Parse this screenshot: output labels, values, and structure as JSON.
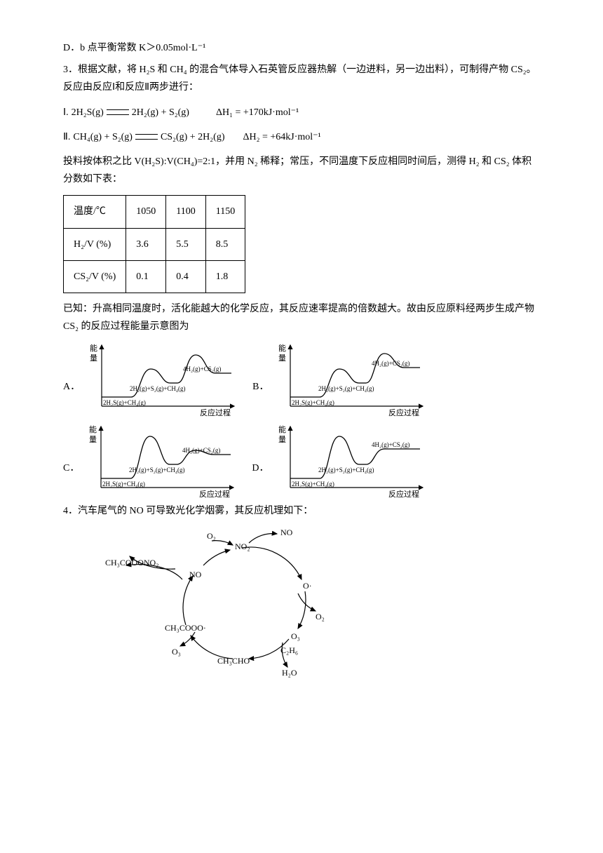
{
  "optionD": "D．b 点平衡常数 K＞0.05mol·L⁻¹",
  "q3": {
    "intro": "3．根据文献，将 H₂S 和 CH₄ 的混合气体导入石英管反应器热解（一边进料，另一边出料），可制得产物 CS₂。反应由反应Ⅰ和反应Ⅱ两步进行：",
    "reaction1_label": "Ⅰ.",
    "reaction1_left": "2H₂S(g)",
    "reaction1_right": "2H₂(g) + S₂(g)",
    "reaction1_dH": "ΔH₁ = +170kJ·mol⁻¹",
    "reaction2_label": "Ⅱ.",
    "reaction2_left": "CH₄(g) + S₂(g)",
    "reaction2_right": "CS₂(g) + 2H₂(g)",
    "reaction2_dH": "ΔH₂ = +64kJ·mol⁻¹",
    "para2": "投料按体积之比 V(H₂S):V(CH₄)=2:1，并用 N₂ 稀释；常压，不同温度下反应相同时间后，测得 H₂ 和 CS₂ 体积分数如下表：",
    "table": {
      "header": [
        "温度/℃",
        "1050",
        "1100",
        "1150"
      ],
      "row1": [
        "H₂/V (%)",
        "3.6",
        "5.5",
        "8.5"
      ],
      "row2": [
        "CS₂/V (%)",
        "0.1",
        "0.4",
        "1.8"
      ]
    },
    "para3": "已知：升高相同温度时，活化能越大的化学反应，其反应速率提高的倍数越大。故由反应原料经两步生成产物 CS₂ 的反应过程能量示意图为",
    "graph": {
      "y_axis": "能量",
      "x_axis": "反应过程",
      "start": "2H₂S(g)+CH₄(g)",
      "mid": "2H₂(g)+S₂(g)+CH₄(g)",
      "end": "4H₂(g)+CS₂(g)",
      "optA": {
        "peak1_h": 40,
        "peak2_h": 60
      },
      "optB": {
        "peak1_h": 40,
        "peak2_h": 62
      },
      "optC": {
        "peak1_h": 60,
        "peak2_h": 40
      },
      "optD": {
        "peak1_h": 60,
        "peak2_h": 42
      },
      "colors": {
        "axis": "#000000",
        "curve": "#000000",
        "text": "#000000"
      }
    }
  },
  "q4": {
    "stem": "4．汽车尾气的 NO 可导致光化学烟雾，其反应机理如下：",
    "cycle_nodes": [
      "O₂",
      "NO₂",
      "NO",
      "O·",
      "O₂",
      "O₃",
      "C₂H₆",
      "H₂O",
      "CH₃CHO",
      "O₃",
      "CH₃COOO·",
      "NO",
      "CH₃COOONO₂"
    ]
  }
}
